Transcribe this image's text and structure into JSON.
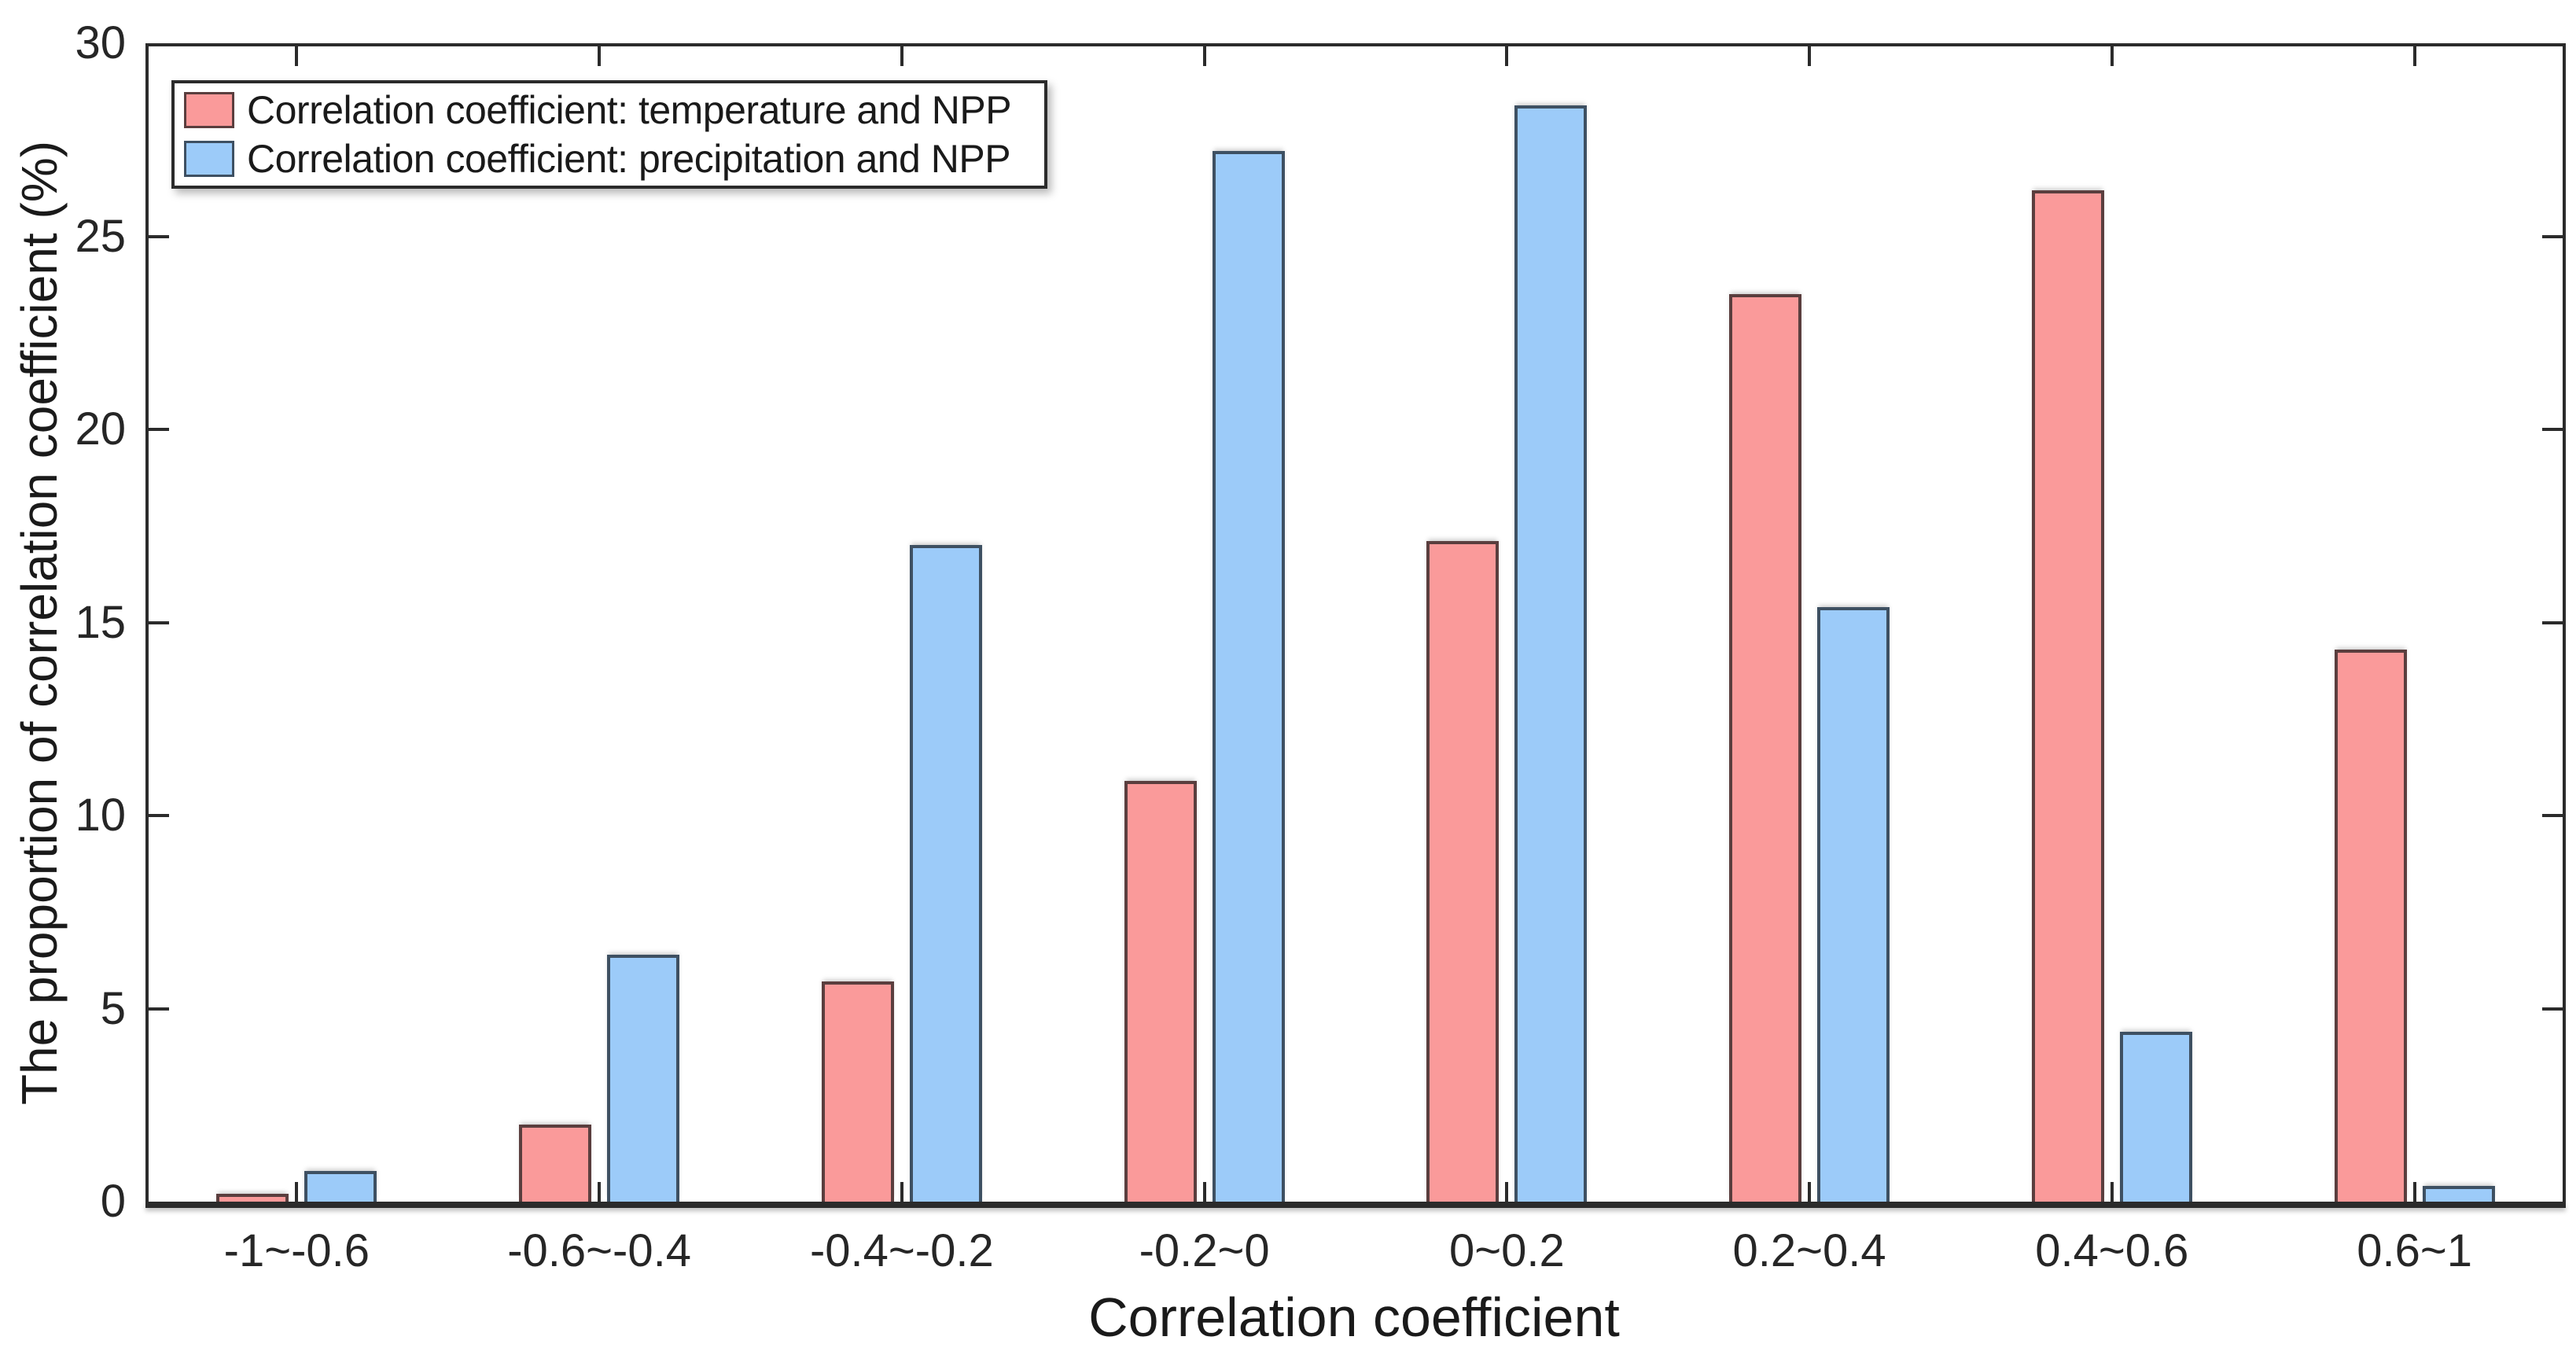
{
  "figure": {
    "xlabel": "Correlation coefficient",
    "ylabel": "The proportion of correlation coefficient (%)"
  },
  "legend": {
    "items": [
      {
        "label": "Correlation coefficient: temperature and NPP",
        "color": "#fa9a9a",
        "edge": "#5a3e3e"
      },
      {
        "label": "Correlation coefficient: precipitation and NPP",
        "color": "#9ccbf9",
        "edge": "#3e5062"
      }
    ]
  },
  "colors": {
    "axis": "#2b2b2b",
    "text": "#262626",
    "background": "#ffffff",
    "temperature_fill": "#fa9a9a",
    "temperature_edge": "#5a3e3e",
    "precipitation_fill": "#9ccbf9",
    "precipitation_edge": "#3e5062"
  },
  "chart_data": {
    "type": "bar",
    "title": "",
    "xlabel": "Correlation coefficient",
    "ylabel": "The proportion of correlation coefficient (%)",
    "categories": [
      "-1~-0.6",
      "-0.6~-0.4",
      "-0.4~-0.2",
      "-0.2~0",
      "0~0.2",
      "0.2~0.4",
      "0.4~0.6",
      "0.6~1"
    ],
    "series": [
      {
        "name": "Correlation coefficient: temperature and NPP",
        "color": "#fa9a9a",
        "edge_color": "#5a3e3e",
        "values": [
          0.2,
          2.0,
          5.7,
          10.9,
          17.1,
          23.5,
          26.2,
          14.3
        ]
      },
      {
        "name": "Correlation coefficient: precipitation and NPP",
        "color": "#9ccbf9",
        "edge_color": "#3e5062",
        "values": [
          0.8,
          6.4,
          17.0,
          27.2,
          28.4,
          15.4,
          4.4,
          0.4
        ]
      }
    ],
    "ylim": [
      0,
      30
    ],
    "yticks": [
      0,
      5,
      10,
      15,
      20,
      25,
      30
    ],
    "grid": false,
    "box": true,
    "legend_position": "top-left-inside"
  }
}
